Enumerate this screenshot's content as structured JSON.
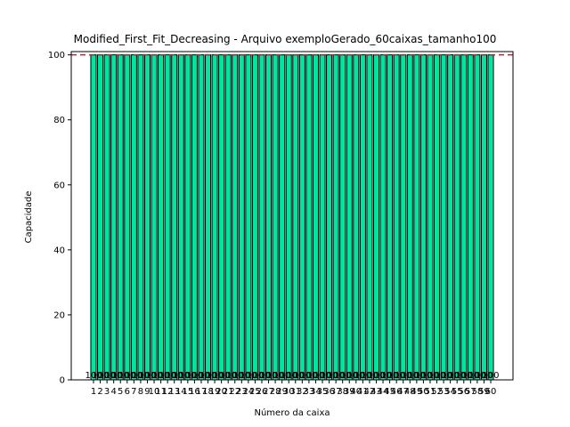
{
  "chart_data": {
    "type": "bar",
    "stacked": true,
    "title": "Modified_First_Fit_Decreasing - Arquivo exemploGerado_60caixas_tamanho100",
    "xlabel": "Número da caixa",
    "ylabel": "Capacidade",
    "ylim": [
      0,
      101
    ],
    "yticks": [
      0,
      20,
      40,
      60,
      80,
      100
    ],
    "capacity_line": 100,
    "colors": {
      "bar_primary": "#00e5a0",
      "bar_secondary": "#8ef5a8",
      "edge": "#000000",
      "capacity_line": "#e8112d"
    },
    "grid": false,
    "categories": [
      "1",
      "2",
      "3",
      "4",
      "5",
      "6",
      "7",
      "8",
      "9",
      "10",
      "11",
      "12",
      "13",
      "14",
      "15",
      "16",
      "17",
      "18",
      "19",
      "20",
      "21",
      "22",
      "23",
      "24",
      "25",
      "26",
      "27",
      "28",
      "29",
      "30",
      "31",
      "32",
      "33",
      "34",
      "35",
      "36",
      "37",
      "38",
      "39",
      "40",
      "41",
      "42",
      "43",
      "44",
      "45",
      "46",
      "47",
      "48",
      "49",
      "50",
      "51",
      "52",
      "53",
      "54",
      "55",
      "56",
      "57",
      "58",
      "59",
      "60"
    ],
    "items": [
      [
        100
      ],
      [
        100
      ],
      [
        100
      ],
      [
        100
      ],
      [
        100
      ],
      [
        100
      ],
      [
        100
      ],
      [
        100
      ],
      [
        100
      ],
      [
        100
      ],
      [
        100
      ],
      [
        100
      ],
      [
        100
      ],
      [
        100
      ],
      [
        100
      ],
      [
        100
      ],
      [
        100
      ],
      [
        100
      ],
      [
        100
      ],
      [
        100
      ],
      [
        100
      ],
      [
        100
      ],
      [
        100
      ],
      [
        100
      ],
      [
        100
      ],
      [
        100
      ],
      [
        100
      ],
      [
        100
      ],
      [
        100
      ],
      [
        100
      ],
      [
        100
      ],
      [
        100
      ],
      [
        100
      ],
      [
        100
      ],
      [
        100
      ],
      [
        100
      ],
      [
        100
      ],
      [
        100
      ],
      [
        100
      ],
      [
        100
      ],
      [
        100
      ],
      [
        100
      ],
      [
        100
      ],
      [
        100
      ],
      [
        100
      ],
      [
        100
      ],
      [
        100
      ],
      [
        100
      ],
      [
        100
      ],
      [
        100
      ],
      [
        100
      ],
      [
        100
      ],
      [
        100
      ],
      [
        100
      ],
      [
        100
      ],
      [
        100
      ],
      [
        100
      ],
      [
        100
      ],
      [
        100
      ],
      [
        100
      ]
    ]
  }
}
